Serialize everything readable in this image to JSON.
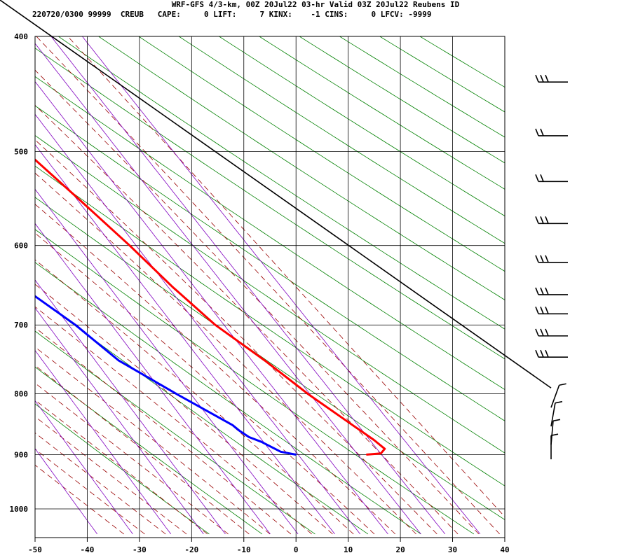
{
  "header": {
    "line1": "WRF-GFS 4/3-km, 00Z 20Jul22 03-hr Valid 03Z 20Jul22 Reubens ID",
    "line2": "220720/0300 99999  CREUB   CAPE:     0 LIFT:     7 KINX:    -1 CINS:     0 LFCV: -9999"
  },
  "chart_data": {
    "type": "line",
    "chart_kind": "skew-T log-P sounding",
    "title": "WRF-GFS 4/3-km, 00Z 20Jul22 03-hr Valid 03Z 20Jul22 Reubens ID",
    "xlabel": "",
    "ylabel": "",
    "x_ticks": [
      "-50",
      "-40",
      "-30",
      "-20",
      "-10",
      "0",
      "10",
      "20",
      "30",
      "40"
    ],
    "y_ticks": [
      "400",
      "500",
      "600",
      "700",
      "800",
      "900",
      "1000"
    ],
    "pressure_levels": [
      400,
      500,
      600,
      700,
      800,
      900,
      1000
    ],
    "xlim": [
      -50,
      40
    ],
    "ylim": [
      1050,
      400
    ],
    "series": [
      {
        "color": "#ff0000",
        "points": [
          {
            "p": 900,
            "t": 20.2
          },
          {
            "p": 898,
            "t": 23.0
          },
          {
            "p": 890,
            "t": 24.3
          },
          {
            "p": 875,
            "t": 23.3
          },
          {
            "p": 850,
            "t": 21.0
          },
          {
            "p": 800,
            "t": 16.2
          },
          {
            "p": 750,
            "t": 12.0
          },
          {
            "p": 700,
            "t": 6.8
          },
          {
            "p": 650,
            "t": 3.2
          },
          {
            "p": 600,
            "t": 0.0
          },
          {
            "p": 550,
            "t": -4.0
          },
          {
            "p": 500,
            "t": -8.5
          },
          {
            "p": 450,
            "t": -13.2
          },
          {
            "p": 437,
            "t": -16.2
          }
        ]
      },
      {
        "color": "#0000ff",
        "points": [
          {
            "p": 900,
            "t": 6.5
          },
          {
            "p": 895,
            "t": 4.0
          },
          {
            "p": 878,
            "t": 1.5
          },
          {
            "p": 870,
            "t": -0.3
          },
          {
            "p": 860,
            "t": -1.3
          },
          {
            "p": 850,
            "t": -2.0
          },
          {
            "p": 800,
            "t": -9.0
          },
          {
            "p": 750,
            "t": -16.0
          },
          {
            "p": 700,
            "t": -20.0
          },
          {
            "p": 660,
            "t": -24.5
          },
          {
            "p": 600,
            "t": -32.5
          },
          {
            "p": 570,
            "t": -37.0
          },
          {
            "p": 530,
            "t": -42.5
          },
          {
            "p": 485,
            "t": -43.5
          },
          {
            "p": 437,
            "t": -42.0
          }
        ]
      }
    ],
    "wind_barbs_pressures": [
      437,
      485,
      530,
      575,
      620,
      660,
      685,
      715,
      745,
      775,
      805,
      835,
      865,
      890
    ],
    "grid": true,
    "colors": {
      "temperature": "#ff0000",
      "dewpoint": "#0000ff",
      "dry_adiabat": "#008000",
      "moist_adiabat": "#990000",
      "mixing_ratio": "#8000c0",
      "grid": "#000000"
    }
  }
}
